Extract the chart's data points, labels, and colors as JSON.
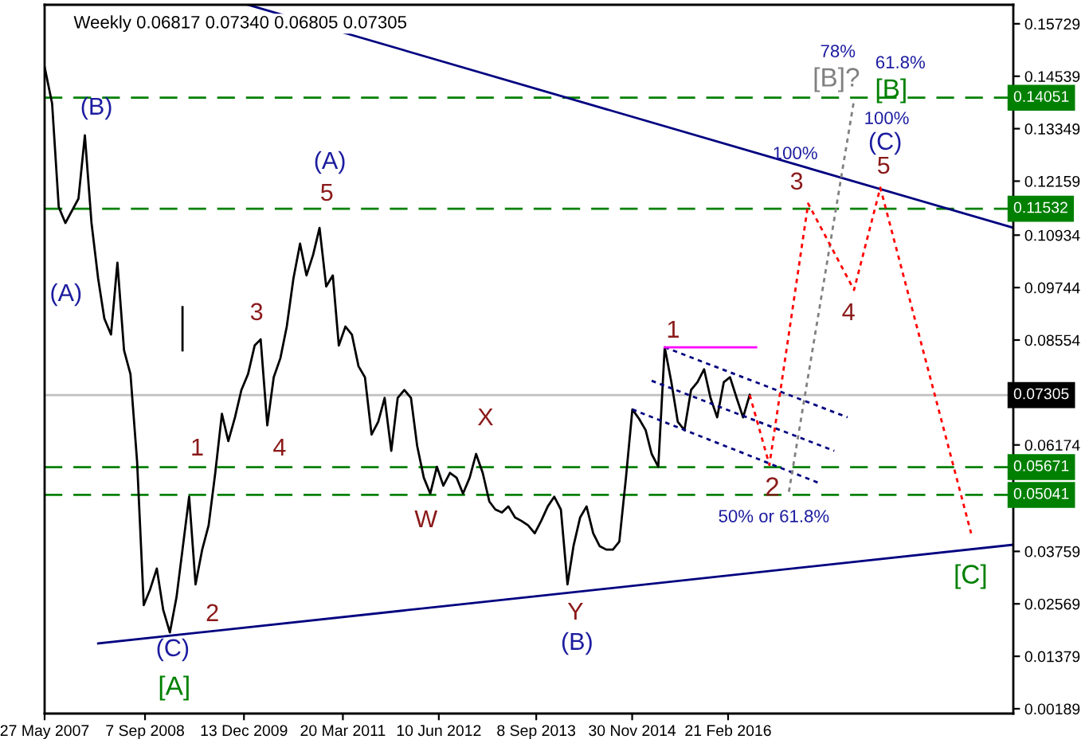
{
  "chart_data": {
    "type": "line",
    "title": "Weekly 0.06817 0.07340 0.06805 0.07305",
    "xlim": [
      "2007-05-27",
      "2019-10-15"
    ],
    "xticks": [
      {
        "value": "2007-05-27",
        "label": "27 May 2007"
      },
      {
        "value": "2008-09-07",
        "label": "7 Sep 2008"
      },
      {
        "value": "2009-12-13",
        "label": "13 Dec 2009"
      },
      {
        "value": "2011-03-20",
        "label": "20 Mar 2011"
      },
      {
        "value": "2012-06-10",
        "label": "10 Jun 2012"
      },
      {
        "value": "2013-09-08",
        "label": "8 Sep 2013"
      },
      {
        "value": "2014-11-30",
        "label": "30 Nov 2014"
      },
      {
        "value": "2016-02-21",
        "label": "21 Feb 2016"
      }
    ],
    "ylim": [
      0.0008,
      0.1616
    ],
    "yticks": [
      0.00189,
      0.01379,
      0.02569,
      0.03759,
      0.06174,
      0.08554,
      0.09744,
      0.10934,
      0.12159,
      0.13349,
      0.14539,
      0.15729
    ],
    "grid": false,
    "series": [
      {
        "color": "#000000",
        "line_style": "solid",
        "x": [
          "2007-05-27",
          "2007-07",
          "2007-08",
          "2007-09",
          "2007-11",
          "2007-12",
          "2008-01",
          "2008-02",
          "2008-03",
          "2008-04",
          "2008-05",
          "2008-06",
          "2008-07",
          "2008-08",
          "2008-09",
          "2008-10",
          "2008-11",
          "2008-12",
          "2009-01",
          "2009-02",
          "2009-03",
          "2009-04",
          "2009-05",
          "2009-06",
          "2009-07",
          "2009-08",
          "2009-09",
          "2009-10",
          "2009-11",
          "2009-12",
          "2010-01",
          "2010-02",
          "2010-03",
          "2010-04",
          "2010-05",
          "2010-06",
          "2010-07",
          "2010-08",
          "2010-09",
          "2010-10",
          "2010-11",
          "2010-12",
          "2011-01",
          "2011-02",
          "2011-03",
          "2011-04",
          "2011-05",
          "2011-06",
          "2011-07",
          "2011-08",
          "2011-09",
          "2011-10",
          "2011-11",
          "2011-12",
          "2012-01",
          "2012-02",
          "2012-03",
          "2012-04",
          "2012-05",
          "2012-06",
          "2012-07",
          "2012-08",
          "2012-09",
          "2012-10",
          "2012-11",
          "2012-12",
          "2013-01",
          "2013-02",
          "2013-03",
          "2013-04",
          "2013-05",
          "2013-06",
          "2013-07",
          "2013-08",
          "2013-09",
          "2013-10",
          "2013-11",
          "2013-12",
          "2014-01",
          "2014-02",
          "2014-03",
          "2014-04",
          "2014-05",
          "2014-06",
          "2014-07",
          "2014-08",
          "2014-09",
          "2014-10",
          "2014-11",
          "2014-12",
          "2015-01",
          "2015-02",
          "2015-03",
          "2015-04",
          "2015-05",
          "2015-06",
          "2015-07",
          "2015-08",
          "2015-09",
          "2015-10",
          "2015-11",
          "2015-12",
          "2016-01",
          "2016-02",
          "2016-03",
          "2016-04",
          "2016-05",
          "2016-06"
        ],
        "values": [
          0.1475,
          0.1392,
          0.1157,
          0.1121,
          0.1176,
          0.132,
          0.1121,
          0.0995,
          0.0904,
          0.0868,
          0.1031,
          0.0832,
          0.0778,
          0.0579,
          0.0254,
          0.029,
          0.0337,
          0.0243,
          0.0192,
          0.0272,
          0.038,
          0.05,
          0.0301,
          0.038,
          0.0435,
          0.0554,
          0.0688,
          0.0626,
          0.068,
          0.0742,
          0.0778,
          0.0843,
          0.0857,
          0.0662,
          0.0771,
          0.0814,
          0.0886,
          0.0995,
          0.1074,
          0.1002,
          0.1049,
          0.111,
          0.0977,
          0.1002,
          0.0843,
          0.0886,
          0.0868,
          0.0796,
          0.0771,
          0.0641,
          0.067,
          0.0724,
          0.0604,
          0.0724,
          0.0742,
          0.0724,
          0.0615,
          0.0543,
          0.0507,
          0.0568,
          0.0525,
          0.0554,
          0.0543,
          0.0507,
          0.0543,
          0.0597,
          0.0554,
          0.0489,
          0.0471,
          0.0464,
          0.0478,
          0.0453,
          0.0445,
          0.0435,
          0.0417,
          0.0445,
          0.0478,
          0.05,
          0.0471,
          0.0301,
          0.0388,
          0.0453,
          0.0478,
          0.0417,
          0.0388,
          0.038,
          0.038,
          0.0398,
          0.0543,
          0.0698,
          0.0677,
          0.0651,
          0.0597,
          0.0568,
          0.0839,
          0.076,
          0.067,
          0.0651,
          0.0742,
          0.076,
          0.0789,
          0.0724,
          0.068,
          0.076,
          0.0771,
          0.0724,
          0.068,
          0.0731
        ]
      },
      {
        "color": "#000000",
        "line_style": "solid",
        "x": [
          "2009-03",
          "2009-03"
        ],
        "values": [
          0.0832,
          0.093
        ]
      },
      {
        "color": "#000080",
        "line_style": "solid",
        "x": [
          "2010-01",
          "2019-10-15"
        ],
        "values": [
          0.1616,
          0.111
        ]
      },
      {
        "color": "#000080",
        "line_style": "solid",
        "x": [
          "2008-02",
          "2019-10-15"
        ],
        "values": [
          0.0167,
          0.0391
        ]
      },
      {
        "color": "#000080",
        "line_style": "dotted",
        "x": [
          "2015-05",
          "2017-09"
        ],
        "values": [
          0.0839,
          0.068
        ]
      },
      {
        "color": "#000080",
        "line_style": "dotted",
        "x": [
          "2015-03",
          "2017-07"
        ],
        "values": [
          0.0763,
          0.0604
        ]
      },
      {
        "color": "#000080",
        "line_style": "dotted",
        "x": [
          "2014-12",
          "2017-05"
        ],
        "values": [
          0.0698,
          0.0529
        ]
      },
      {
        "color": "#ff00ff",
        "line_style": "solid",
        "x": [
          "2015-05",
          "2016-07"
        ],
        "values": [
          0.0839,
          0.0839
        ]
      },
      {
        "color": "#808080",
        "line_style": "dotted",
        "x": [
          "2016-12",
          "2017-10"
        ],
        "values": [
          0.0511,
          0.1399
        ]
      },
      {
        "color": "#ff0000",
        "line_style": "dotted",
        "x": [
          "2016-06",
          "2016-09",
          "2017-03",
          "2017-10",
          "2018-02",
          "2019-04"
        ],
        "values": [
          0.0731,
          0.0572,
          0.1165,
          0.0969,
          0.1201,
          0.0417
        ]
      }
    ],
    "ref_lines": [
      {
        "axis": "y",
        "value": 0.14051,
        "label": "0.14051",
        "color": "#008000",
        "line_style": "dashed"
      },
      {
        "axis": "y",
        "value": 0.11532,
        "label": "0.11532",
        "color": "#008000",
        "line_style": "dashed"
      },
      {
        "axis": "y",
        "value": 0.05671,
        "label": "0.05671",
        "color": "#008000",
        "line_style": "dashed"
      },
      {
        "axis": "y",
        "value": 0.05041,
        "label": "0.05041",
        "color": "#008000",
        "line_style": "dashed"
      },
      {
        "axis": "y",
        "value": 0.07305,
        "label": "0.07305",
        "color": "#c0c0c0",
        "line_style": "solid"
      }
    ],
    "annotations": [
      "(B)",
      "(A)",
      "(A)",
      "5",
      "3",
      "1",
      "4",
      "2",
      "(C)",
      "[A]",
      "W",
      "X",
      "Y",
      "(B)",
      "1",
      "2",
      "50% or 61.8%",
      "3",
      "100%",
      "4",
      "5",
      "(C)",
      "100%",
      "[B]",
      "61.8%",
      "[B]?",
      "78%",
      "[C]"
    ]
  }
}
